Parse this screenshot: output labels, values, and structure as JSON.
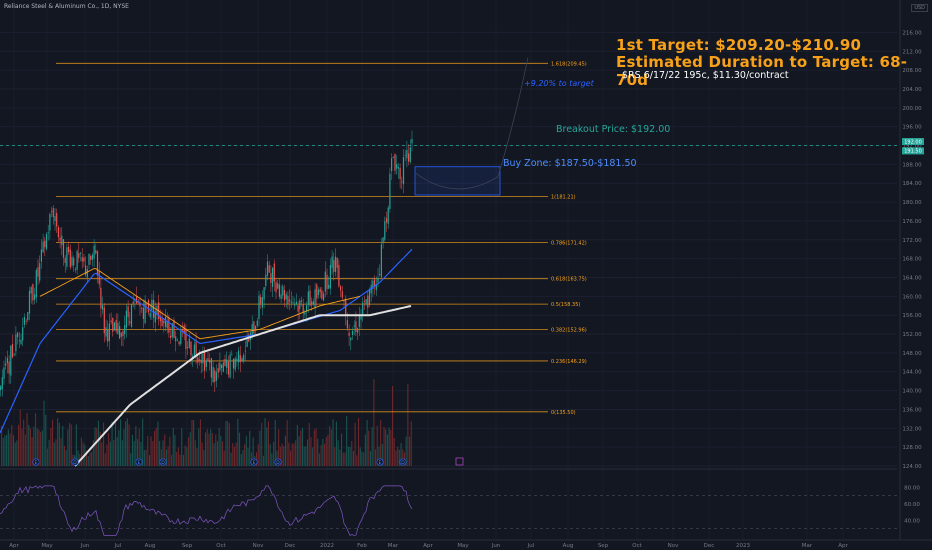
{
  "header": {
    "symbol_line": "Reliance Steel & Aluminum Co., 1D, NYSE",
    "currency": "USD"
  },
  "annotations": {
    "target_title": "1st Target: $209.20-$210.90",
    "duration": "Estimated Duration to Target: 68-70d",
    "option": "$RS 6/17/22 195c, $11.30/contract",
    "pct_to_target": "+9.20% to target",
    "breakout": "Breakout Price: $192.00",
    "buy_zone": "Buy Zone: $187.50-$181.50"
  },
  "colors": {
    "background": "#131722",
    "up": "#26a69a",
    "down": "#ef5350",
    "fib": "#f7a11a",
    "ema": "#2962ff",
    "sma": "#e0e0e0",
    "rsi": "#7e57c2"
  },
  "chart_data": {
    "type": "candlestick",
    "y_axis": {
      "ticks": [
        124,
        128,
        132,
        136,
        140,
        144,
        148,
        152,
        156,
        160,
        164,
        168,
        172,
        176,
        180,
        184,
        188,
        192,
        196,
        200,
        204,
        208,
        212,
        216
      ],
      "range": [
        124,
        218
      ]
    },
    "x_axis": {
      "labels": [
        "Apr",
        "May",
        "Jun",
        "Jul",
        "Aug",
        "Sep",
        "Oct",
        "Nov",
        "Dec",
        "2022",
        "Feb",
        "Mar",
        "Apr",
        "May",
        "Jun",
        "Jul",
        "Aug",
        "Sep",
        "Oct",
        "Nov",
        "Dec",
        "2023",
        "Mar",
        "Apr"
      ]
    },
    "fib_levels": [
      {
        "label": "1.618(209.45)",
        "value": 209.45
      },
      {
        "label": "1(181.21)",
        "value": 181.21
      },
      {
        "label": "0.786(171.42)",
        "value": 171.42
      },
      {
        "label": "0.618(163.75)",
        "value": 163.75
      },
      {
        "label": "0.5(158.35)",
        "value": 158.35
      },
      {
        "label": "0.382(152.96)",
        "value": 152.96
      },
      {
        "label": "0.236(146.29)",
        "value": 146.29
      },
      {
        "label": "0(135.50)",
        "value": 135.5
      }
    ],
    "breakout_price": 192.0,
    "buy_zone": [
      181.5,
      187.5
    ],
    "price_tags": [
      {
        "text": "192.00",
        "value": 192.0,
        "color": "#26a69a"
      },
      {
        "text": "191.50",
        "value": 191.5,
        "color": "#26a69a"
      }
    ],
    "close_path": [
      {
        "t": 0,
        "v": 141
      },
      {
        "t": 20,
        "v": 153
      },
      {
        "t": 38,
        "v": 165
      },
      {
        "t": 52,
        "v": 179
      },
      {
        "t": 62,
        "v": 170
      },
      {
        "t": 72,
        "v": 168
      },
      {
        "t": 85,
        "v": 166
      },
      {
        "t": 95,
        "v": 169
      },
      {
        "t": 104,
        "v": 153
      },
      {
        "t": 118,
        "v": 152
      },
      {
        "t": 130,
        "v": 157
      },
      {
        "t": 150,
        "v": 158
      },
      {
        "t": 165,
        "v": 155
      },
      {
        "t": 180,
        "v": 151
      },
      {
        "t": 200,
        "v": 148
      },
      {
        "t": 215,
        "v": 143
      },
      {
        "t": 232,
        "v": 146
      },
      {
        "t": 250,
        "v": 151
      },
      {
        "t": 268,
        "v": 166
      },
      {
        "t": 282,
        "v": 161
      },
      {
        "t": 300,
        "v": 158
      },
      {
        "t": 318,
        "v": 160
      },
      {
        "t": 335,
        "v": 168
      },
      {
        "t": 350,
        "v": 152
      },
      {
        "t": 365,
        "v": 158
      },
      {
        "t": 378,
        "v": 165
      },
      {
        "t": 386,
        "v": 178
      },
      {
        "t": 392,
        "v": 190
      },
      {
        "t": 400,
        "v": 186
      },
      {
        "t": 412,
        "v": 191.5
      }
    ],
    "ema_path": [
      {
        "t": 0,
        "v": 131
      },
      {
        "t": 40,
        "v": 150
      },
      {
        "t": 95,
        "v": 165
      },
      {
        "t": 130,
        "v": 160
      },
      {
        "t": 200,
        "v": 150
      },
      {
        "t": 260,
        "v": 152
      },
      {
        "t": 340,
        "v": 157
      },
      {
        "t": 380,
        "v": 163
      },
      {
        "t": 412,
        "v": 170
      }
    ],
    "sma_path": [
      {
        "t": 75,
        "v": 124
      },
      {
        "t": 130,
        "v": 137
      },
      {
        "t": 200,
        "v": 148
      },
      {
        "t": 260,
        "v": 152
      },
      {
        "t": 320,
        "v": 156
      },
      {
        "t": 370,
        "v": 156
      },
      {
        "t": 412,
        "v": 158
      }
    ],
    "rsi": {
      "levels": [
        70,
        30
      ],
      "ticks": [
        80,
        60,
        40
      ]
    }
  }
}
